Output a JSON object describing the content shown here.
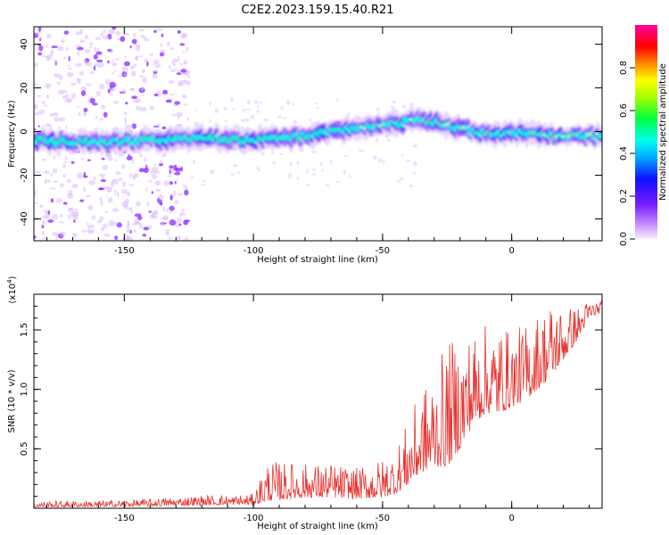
{
  "title": "C2E2.2023.159.15.40.R21",
  "chart_data": [
    {
      "type": "heatmap",
      "xlabel": "Height of straight line (km)",
      "ylabel": "Frequency (Hz)",
      "xlim": [
        -185,
        35
      ],
      "ylim": [
        -50,
        48
      ],
      "xticks": [
        -150,
        -100,
        -50,
        0
      ],
      "yticks": [
        -40,
        -20,
        0,
        20,
        40
      ],
      "ridge": {
        "x": [
          -185,
          -160,
          -140,
          -120,
          -100,
          -80,
          -60,
          -45,
          -35,
          -25,
          -15,
          -5,
          5,
          15,
          25,
          35
        ],
        "freq": [
          -4,
          -5,
          -4,
          -3,
          -4,
          -2,
          2,
          4,
          5,
          3,
          0,
          -1,
          0,
          -2,
          -2,
          -2
        ]
      },
      "colorbar": {
        "label": "Normalized spectral amplitude",
        "range": [
          0.0,
          1.0
        ],
        "ticks": [
          "0.0",
          "0.2",
          "0.4",
          "0.6",
          "0.8"
        ]
      }
    },
    {
      "type": "line",
      "xlabel": "Height of straight line (km)",
      "ylabel": "SNR (10 * v/v)",
      "multiplier": "(x10",
      "multiplier_exp": "4",
      "xlim": [
        -185,
        35
      ],
      "ylim": [
        0,
        18000
      ],
      "xticks": [
        -150,
        -100,
        -50,
        0
      ],
      "yticks": [
        5000,
        10000,
        15000
      ],
      "ytick_labels": [
        "0.5",
        "1.0",
        "1.5"
      ],
      "color": "#e8302c",
      "envelope": {
        "x": [
          -185,
          -150,
          -120,
          -100,
          -95,
          -80,
          -70,
          -60,
          -50,
          -45,
          -40,
          -35,
          -30,
          -25,
          -20,
          -15,
          -10,
          -5,
          0,
          5,
          10,
          15,
          20,
          25,
          30,
          35
        ],
        "min": [
          100,
          150,
          250,
          300,
          600,
          900,
          900,
          800,
          900,
          1200,
          2000,
          3000,
          3500,
          3500,
          5000,
          7000,
          8000,
          8000,
          8500,
          9000,
          10000,
          11000,
          12500,
          14000,
          16000,
          16500
        ],
        "max": [
          600,
          700,
          1100,
          1200,
          4000,
          3800,
          3800,
          3400,
          4200,
          5000,
          7500,
          10000,
          11500,
          14000,
          14500,
          15000,
          15500,
          15500,
          15000,
          15500,
          16500,
          17500,
          17000,
          17000,
          17500,
          17500
        ]
      }
    }
  ]
}
